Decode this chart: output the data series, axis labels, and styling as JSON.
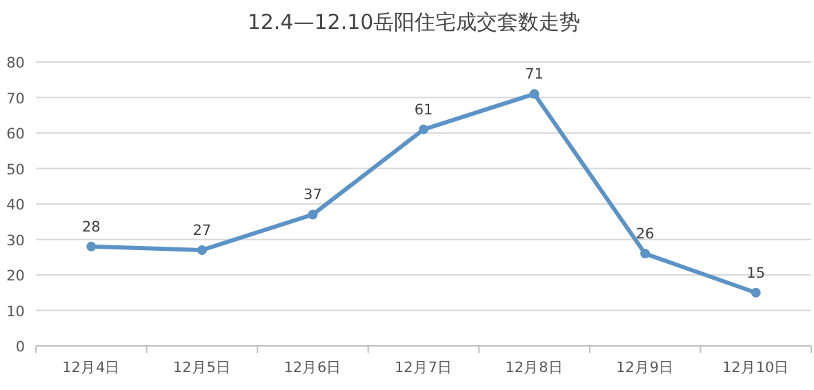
{
  "chart_data": {
    "type": "line",
    "title": "12.4—12.10岳阳住宅成交套数走势",
    "categories": [
      "12月4日",
      "12月5日",
      "12月6日",
      "12月7日",
      "12月8日",
      "12月9日",
      "12月10日"
    ],
    "values": [
      28,
      27,
      37,
      61,
      71,
      26,
      15
    ],
    "color": "#5b93c6",
    "ylim": [
      0,
      80
    ],
    "yticks": [
      0,
      10,
      20,
      30,
      40,
      50,
      60,
      70,
      80
    ],
    "grid": "y",
    "marker": "circle",
    "data_labels": true
  }
}
